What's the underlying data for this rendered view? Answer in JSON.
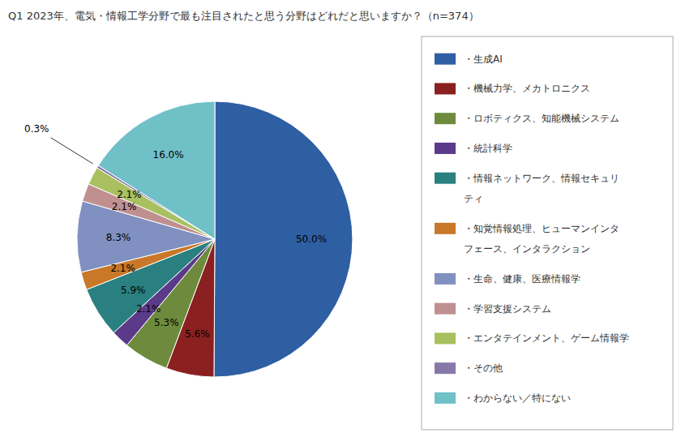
{
  "chart_data": {
    "type": "pie",
    "title": "Q1 2023年、電気・情報工学分野で最も注目されたと思う分野はどれだと思いますか？（n=374）",
    "categories": [
      "・生成AI",
      "・機械力学、メカトロニクス",
      "・ロボティクス、知能機械システム",
      "・統計科学",
      "・情報ネットワーク、情報セキュリ\nティ",
      "・知覚情報処理、ヒューマンインタ\nフェース、インタラクション",
      "・生命、健康、医療情報学",
      "・学習支援システム",
      "・エンタテインメント、ゲーム情報学",
      "・その他",
      "・わからない／特にない"
    ],
    "values": [
      50.0,
      5.6,
      5.3,
      2.1,
      5.9,
      2.1,
      8.3,
      2.1,
      2.1,
      0.3,
      16.0
    ],
    "value_labels": [
      "50.0%",
      "5.6%",
      "5.3%",
      "2.1%",
      "5.9%",
      "2.1%",
      "8.3%",
      "2.1%",
      "2.1%",
      "0.3%",
      "16.0%"
    ],
    "colors": [
      "#2E5FA3",
      "#8B2020",
      "#6E8B3D",
      "#5B3A8A",
      "#2A8080",
      "#C87828",
      "#8090C0",
      "#C09090",
      "#A8C060",
      "#8878A8",
      "#70C0C8"
    ],
    "data_labels": true,
    "legend": "right"
  }
}
